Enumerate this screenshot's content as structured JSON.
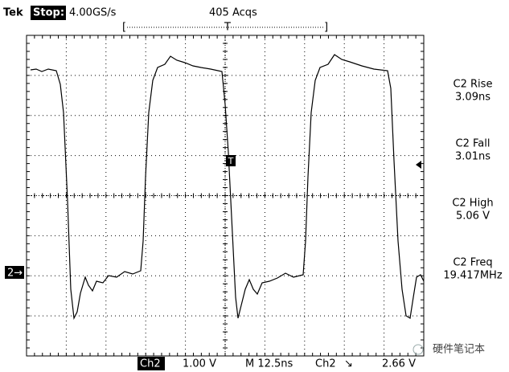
{
  "status": {
    "brand": "Tek",
    "state": "Stop:",
    "rate": "4.00GS/s",
    "acqs": "405 Acqs"
  },
  "trigger_marker": "T",
  "channel_marker": "2→",
  "measurements": [
    {
      "label": "C2 Rise",
      "value": "3.09ns"
    },
    {
      "label": "C2 Fall",
      "value": "3.01ns"
    },
    {
      "label": "C2 High",
      "value": "5.06 V"
    },
    {
      "label": "C2 Freq",
      "value": "19.417MHz"
    }
  ],
  "footer": {
    "channel": "Ch2",
    "volts_div": "1.00 V",
    "time_div": "M 12.5ns",
    "trig_channel": "Ch2",
    "trig_slope": "↘",
    "trig_level": "2.66 V"
  },
  "watermark": "硬件笔记本"
}
